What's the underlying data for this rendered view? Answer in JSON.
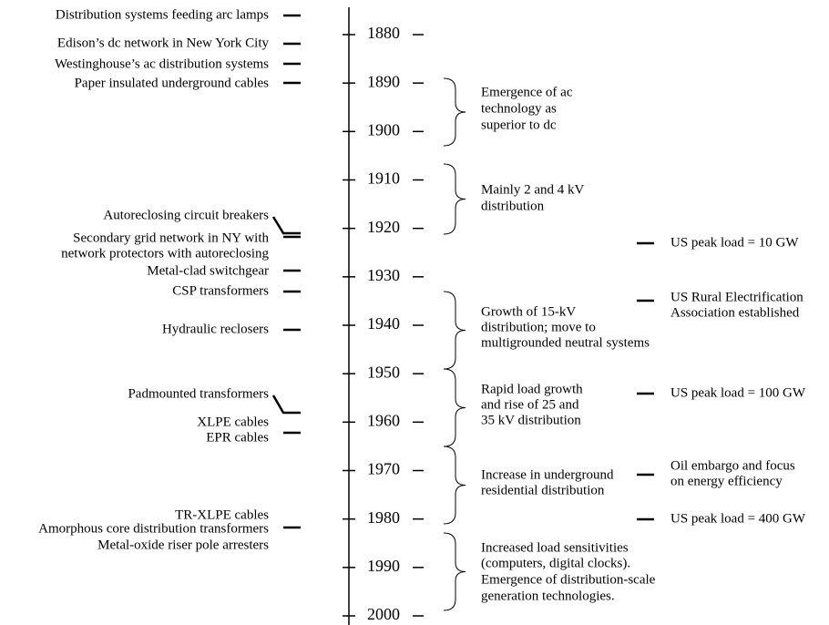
{
  "axis_years": [
    1880,
    1890,
    1900,
    1910,
    1920,
    1930,
    1940,
    1950,
    1960,
    1970,
    1980,
    1990,
    2000
  ],
  "left_events": [
    {
      "lines": [
        "Distribution systems feeding arc lamps"
      ]
    },
    {
      "lines": [
        "Edison’s dc network in New York City"
      ]
    },
    {
      "lines": [
        "Westinghouse’s ac distribution systems"
      ]
    },
    {
      "lines": [
        "Paper insulated underground cables"
      ]
    },
    {
      "lines": [
        "Autoreclosing circuit breakers"
      ]
    },
    {
      "lines": [
        "Secondary grid network in NY with",
        "network protectors with autoreclosing"
      ]
    },
    {
      "lines": [
        "Metal-clad switchgear"
      ]
    },
    {
      "lines": [
        "CSP transformers"
      ]
    },
    {
      "lines": [
        "Hydraulic reclosers"
      ]
    },
    {
      "lines": [
        "Padmounted transformers"
      ]
    },
    {
      "lines": [
        "XLPE cables"
      ]
    },
    {
      "lines": [
        "EPR cables"
      ]
    },
    {
      "lines": [
        "TR-XLPE cables"
      ]
    },
    {
      "lines": [
        "Amorphous core distribution transformers"
      ]
    },
    {
      "lines": [
        "Metal-oxide riser pole arresters"
      ]
    }
  ],
  "periods": [
    {
      "lines": [
        "Emergence of ac",
        "technology as",
        "superior to dc"
      ]
    },
    {
      "lines": [
        "Mainly 2 and 4 kV",
        "distribution"
      ]
    },
    {
      "lines": [
        "Growth of 15-kV",
        "distribution; move to",
        "multigrounded neutral systems"
      ]
    },
    {
      "lines": [
        "Rapid load growth",
        "and rise of 25 and",
        "35 kV distribution"
      ]
    },
    {
      "lines": [
        "Increase in underground",
        "residential distribution"
      ]
    },
    {
      "lines": [
        "Increased load sensitivities",
        "(computers, digital clocks).",
        "Emergence of distribution-scale",
        "generation technologies."
      ]
    }
  ],
  "right_events": [
    {
      "lines": [
        "US peak load = 10 GW"
      ]
    },
    {
      "lines": [
        "US Rural Electrification",
        "Association established"
      ]
    },
    {
      "lines": [
        "US peak load = 100 GW"
      ]
    },
    {
      "lines": [
        "Oil embargo and focus",
        "on energy efficiency"
      ]
    },
    {
      "lines": [
        "US peak load = 400 GW"
      ]
    }
  ]
}
